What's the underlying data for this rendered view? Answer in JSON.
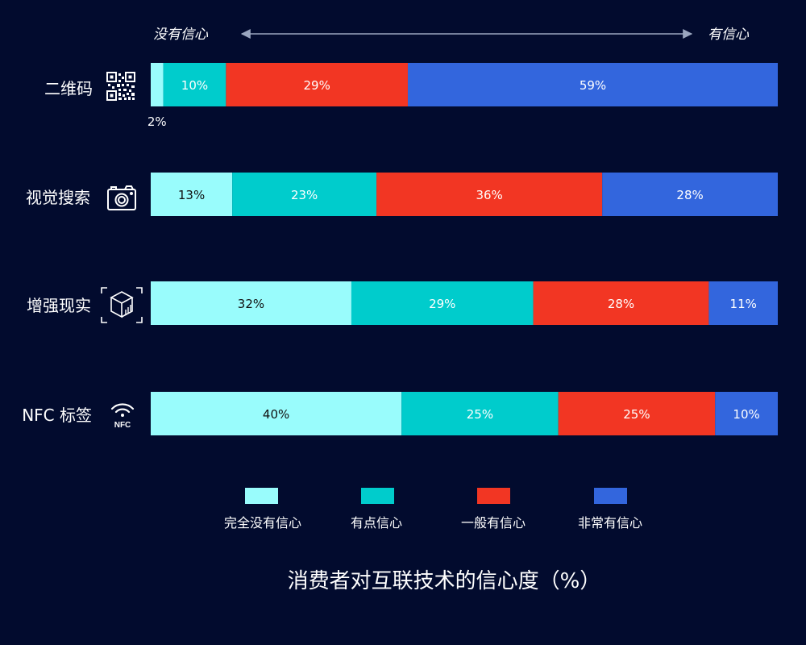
{
  "chart_data": {
    "type": "bar",
    "orientation": "horizontal",
    "stacked": true,
    "title": "消费者对互联技术的信心度（%）",
    "scale": {
      "left": "没有信心",
      "right": "有信心"
    },
    "categories": [
      "二维码",
      "视觉搜索",
      "增强现实",
      "NFC 标签"
    ],
    "icons": [
      "qr-code-icon",
      "camera-icon",
      "ar-cube-icon",
      "nfc-icon"
    ],
    "series": [
      {
        "name": "完全没有信心",
        "color": "#99fcfc",
        "values": [
          2,
          13,
          32,
          40
        ]
      },
      {
        "name": "有点信心",
        "color": "#00cccc",
        "values": [
          10,
          23,
          29,
          25
        ]
      },
      {
        "name": "一般有信心",
        "color": "#f23623",
        "values": [
          29,
          36,
          28,
          25
        ]
      },
      {
        "name": "非常有信心",
        "color": "#3366dd",
        "values": [
          59,
          28,
          11,
          10
        ]
      }
    ],
    "value_suffix": "%",
    "legend_position": "bottom",
    "grid": false
  }
}
